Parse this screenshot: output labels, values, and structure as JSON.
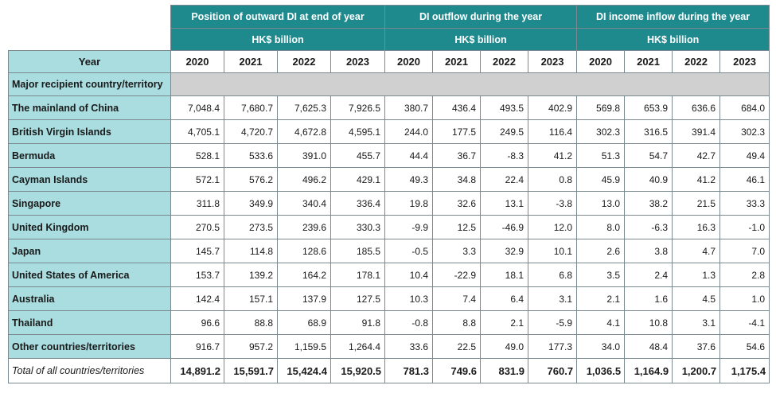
{
  "header": {
    "groups": [
      {
        "title": "Position of outward DI at end of year",
        "unit": "HK$ billion"
      },
      {
        "title": "DI outflow during the year",
        "unit": "HK$ billion"
      },
      {
        "title": "DI income inflow during the year",
        "unit": "HK$ billion"
      }
    ],
    "year_label": "Year",
    "years": [
      "2020",
      "2021",
      "2022",
      "2023"
    ]
  },
  "section_label": "Major recipient country/territory",
  "rows": [
    {
      "name": "The mainland of China",
      "values": [
        "7,048.4",
        "7,680.7",
        "7,625.3",
        "7,926.5",
        "380.7",
        "436.4",
        "493.5",
        "402.9",
        "569.8",
        "653.9",
        "636.6",
        "684.0"
      ]
    },
    {
      "name": "British Virgin Islands",
      "values": [
        "4,705.1",
        "4,720.7",
        "4,672.8",
        "4,595.1",
        "244.0",
        "177.5",
        "249.5",
        "116.4",
        "302.3",
        "316.5",
        "391.4",
        "302.3"
      ]
    },
    {
      "name": "Bermuda",
      "values": [
        "528.1",
        "533.6",
        "391.0",
        "455.7",
        "44.4",
        "36.7",
        "-8.3",
        "41.2",
        "51.3",
        "54.7",
        "42.7",
        "49.4"
      ]
    },
    {
      "name": "Cayman Islands",
      "values": [
        "572.1",
        "576.2",
        "496.2",
        "429.1",
        "49.3",
        "34.8",
        "22.4",
        "0.8",
        "45.9",
        "40.9",
        "41.2",
        "46.1"
      ]
    },
    {
      "name": "Singapore",
      "values": [
        "311.8",
        "349.9",
        "340.4",
        "336.4",
        "19.8",
        "32.6",
        "13.1",
        "-3.8",
        "13.0",
        "38.2",
        "21.5",
        "33.3"
      ]
    },
    {
      "name": "United Kingdom",
      "values": [
        "270.5",
        "273.5",
        "239.6",
        "330.3",
        "-9.9",
        "12.5",
        "-46.9",
        "12.0",
        "8.0",
        "-6.3",
        "16.3",
        "-1.0"
      ]
    },
    {
      "name": "Japan",
      "values": [
        "145.7",
        "114.8",
        "128.6",
        "185.5",
        "-0.5",
        "3.3",
        "32.9",
        "10.1",
        "2.6",
        "3.8",
        "4.7",
        "7.0"
      ]
    },
    {
      "name": "United States of America",
      "values": [
        "153.7",
        "139.2",
        "164.2",
        "178.1",
        "10.4",
        "-22.9",
        "18.1",
        "6.8",
        "3.5",
        "2.4",
        "1.3",
        "2.8"
      ]
    },
    {
      "name": "Australia",
      "values": [
        "142.4",
        "157.1",
        "137.9",
        "127.5",
        "10.3",
        "7.4",
        "6.4",
        "3.1",
        "2.1",
        "1.6",
        "4.5",
        "1.0"
      ]
    },
    {
      "name": "Thailand",
      "values": [
        "96.6",
        "88.8",
        "68.9",
        "91.8",
        "-0.8",
        "8.8",
        "2.1",
        "-5.9",
        "4.1",
        "10.8",
        "3.1",
        "-4.1"
      ]
    },
    {
      "name": "Other countries/territories",
      "values": [
        "916.7",
        "957.2",
        "1,159.5",
        "1,264.4",
        "33.6",
        "22.5",
        "49.0",
        "177.3",
        "34.0",
        "48.4",
        "37.6",
        "54.6"
      ]
    }
  ],
  "total": {
    "name": "Total of all countries/territories",
    "values": [
      "14,891.2",
      "15,591.7",
      "15,424.4",
      "15,920.5",
      "781.3",
      "749.6",
      "831.9",
      "760.7",
      "1,036.5",
      "1,164.9",
      "1,200.7",
      "1,175.4"
    ]
  }
}
